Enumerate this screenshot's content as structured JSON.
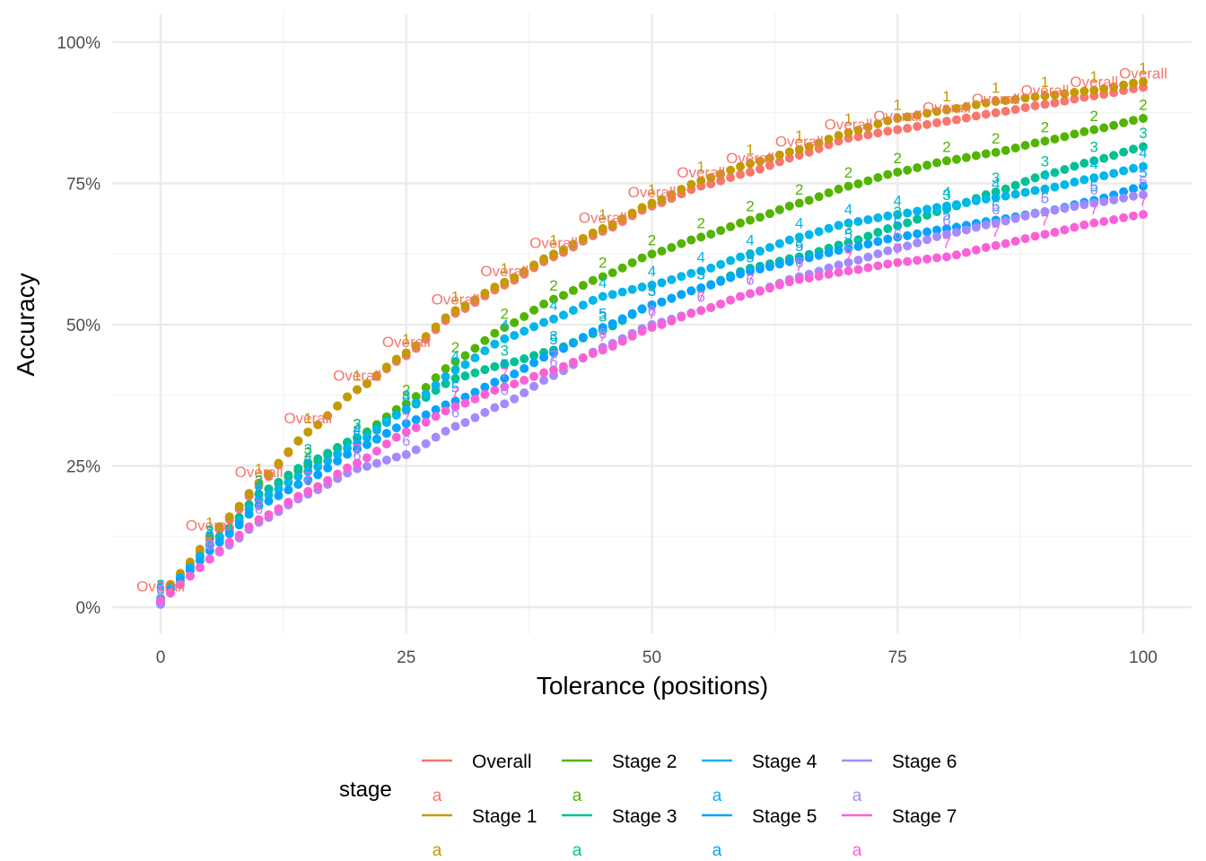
{
  "chart_data": {
    "type": "scatter",
    "title": "",
    "xlabel": "Tolerance (positions)",
    "ylabel": "Accuracy",
    "xlim": [
      0,
      100
    ],
    "ylim": [
      0,
      1
    ],
    "x_ticks": [
      0,
      25,
      50,
      75,
      100
    ],
    "x_tick_labels": [
      "0",
      "25",
      "50",
      "75",
      "100"
    ],
    "y_ticks": [
      0,
      0.25,
      0.5,
      0.75,
      1.0
    ],
    "y_tick_labels": [
      "0%",
      "25%",
      "50%",
      "75%",
      "100%"
    ],
    "grid": true,
    "legend_title": "stage",
    "legend_position": "bottom",
    "legend_key_glyph": "a",
    "label_every": 5,
    "series": [
      {
        "name": "Overall",
        "label": "Overall",
        "color": "#F8766D",
        "anchors": [
          [
            0,
            0.012
          ],
          [
            1,
            0.04
          ],
          [
            3,
            0.075
          ],
          [
            5,
            0.12
          ],
          [
            7,
            0.155
          ],
          [
            10,
            0.215
          ],
          [
            15,
            0.31
          ],
          [
            20,
            0.385
          ],
          [
            25,
            0.445
          ],
          [
            30,
            0.52
          ],
          [
            35,
            0.57
          ],
          [
            40,
            0.62
          ],
          [
            45,
            0.665
          ],
          [
            50,
            0.71
          ],
          [
            55,
            0.745
          ],
          [
            60,
            0.77
          ],
          [
            65,
            0.8
          ],
          [
            70,
            0.83
          ],
          [
            75,
            0.845
          ],
          [
            80,
            0.86
          ],
          [
            85,
            0.875
          ],
          [
            90,
            0.89
          ],
          [
            95,
            0.905
          ],
          [
            100,
            0.92
          ]
        ]
      },
      {
        "name": "Stage 1",
        "label": "1",
        "color": "#C49A00",
        "anchors": [
          [
            0,
            0.012
          ],
          [
            1,
            0.04
          ],
          [
            3,
            0.08
          ],
          [
            5,
            0.125
          ],
          [
            7,
            0.16
          ],
          [
            10,
            0.22
          ],
          [
            15,
            0.31
          ],
          [
            20,
            0.385
          ],
          [
            25,
            0.45
          ],
          [
            30,
            0.525
          ],
          [
            35,
            0.575
          ],
          [
            40,
            0.625
          ],
          [
            45,
            0.67
          ],
          [
            50,
            0.715
          ],
          [
            55,
            0.755
          ],
          [
            60,
            0.785
          ],
          [
            65,
            0.81
          ],
          [
            70,
            0.84
          ],
          [
            75,
            0.865
          ],
          [
            80,
            0.88
          ],
          [
            85,
            0.895
          ],
          [
            90,
            0.905
          ],
          [
            95,
            0.915
          ],
          [
            100,
            0.93
          ]
        ]
      },
      {
        "name": "Stage 2",
        "label": "2",
        "color": "#53B400",
        "anchors": [
          [
            0,
            0.015
          ],
          [
            1,
            0.035
          ],
          [
            3,
            0.07
          ],
          [
            5,
            0.11
          ],
          [
            7,
            0.14
          ],
          [
            10,
            0.2
          ],
          [
            15,
            0.25
          ],
          [
            20,
            0.3
          ],
          [
            25,
            0.36
          ],
          [
            30,
            0.435
          ],
          [
            35,
            0.495
          ],
          [
            40,
            0.545
          ],
          [
            45,
            0.585
          ],
          [
            50,
            0.625
          ],
          [
            55,
            0.655
          ],
          [
            60,
            0.685
          ],
          [
            65,
            0.715
          ],
          [
            70,
            0.745
          ],
          [
            75,
            0.77
          ],
          [
            80,
            0.79
          ],
          [
            85,
            0.805
          ],
          [
            90,
            0.825
          ],
          [
            95,
            0.845
          ],
          [
            100,
            0.865
          ]
        ]
      },
      {
        "name": "Stage 3",
        "label": "3",
        "color": "#00C094",
        "anchors": [
          [
            0,
            0.015
          ],
          [
            1,
            0.035
          ],
          [
            3,
            0.07
          ],
          [
            5,
            0.11
          ],
          [
            7,
            0.14
          ],
          [
            10,
            0.2
          ],
          [
            15,
            0.255
          ],
          [
            20,
            0.3
          ],
          [
            25,
            0.35
          ],
          [
            30,
            0.405
          ],
          [
            35,
            0.43
          ],
          [
            40,
            0.455
          ],
          [
            45,
            0.49
          ],
          [
            50,
            0.535
          ],
          [
            55,
            0.565
          ],
          [
            60,
            0.6
          ],
          [
            65,
            0.62
          ],
          [
            70,
            0.645
          ],
          [
            75,
            0.675
          ],
          [
            80,
            0.705
          ],
          [
            85,
            0.735
          ],
          [
            90,
            0.765
          ],
          [
            95,
            0.79
          ],
          [
            100,
            0.815
          ]
        ]
      },
      {
        "name": "Stage 4",
        "label": "4",
        "color": "#00B6EB",
        "anchors": [
          [
            0,
            0.015
          ],
          [
            1,
            0.035
          ],
          [
            3,
            0.07
          ],
          [
            5,
            0.11
          ],
          [
            7,
            0.135
          ],
          [
            10,
            0.19
          ],
          [
            15,
            0.24
          ],
          [
            20,
            0.29
          ],
          [
            25,
            0.35
          ],
          [
            30,
            0.42
          ],
          [
            35,
            0.475
          ],
          [
            40,
            0.51
          ],
          [
            45,
            0.55
          ],
          [
            50,
            0.57
          ],
          [
            55,
            0.595
          ],
          [
            60,
            0.625
          ],
          [
            65,
            0.655
          ],
          [
            70,
            0.68
          ],
          [
            75,
            0.695
          ],
          [
            80,
            0.71
          ],
          [
            85,
            0.725
          ],
          [
            90,
            0.74
          ],
          [
            95,
            0.76
          ],
          [
            100,
            0.78
          ]
        ]
      },
      {
        "name": "Stage 5",
        "label": "5",
        "color": "#06A4FF",
        "anchors": [
          [
            0,
            0.008
          ],
          [
            1,
            0.03
          ],
          [
            3,
            0.065
          ],
          [
            5,
            0.1
          ],
          [
            7,
            0.13
          ],
          [
            10,
            0.18
          ],
          [
            15,
            0.225
          ],
          [
            20,
            0.28
          ],
          [
            25,
            0.325
          ],
          [
            30,
            0.365
          ],
          [
            35,
            0.405
          ],
          [
            40,
            0.45
          ],
          [
            45,
            0.495
          ],
          [
            50,
            0.535
          ],
          [
            55,
            0.565
          ],
          [
            60,
            0.595
          ],
          [
            65,
            0.615
          ],
          [
            70,
            0.635
          ],
          [
            75,
            0.655
          ],
          [
            80,
            0.67
          ],
          [
            85,
            0.685
          ],
          [
            90,
            0.7
          ],
          [
            95,
            0.72
          ],
          [
            100,
            0.745
          ]
        ]
      },
      {
        "name": "Stage 6",
        "label": "6",
        "color": "#A58AFF",
        "anchors": [
          [
            0,
            0.005
          ],
          [
            1,
            0.025
          ],
          [
            3,
            0.055
          ],
          [
            5,
            0.085
          ],
          [
            7,
            0.11
          ],
          [
            10,
            0.15
          ],
          [
            15,
            0.2
          ],
          [
            20,
            0.245
          ],
          [
            25,
            0.27
          ],
          [
            30,
            0.32
          ],
          [
            35,
            0.36
          ],
          [
            40,
            0.41
          ],
          [
            45,
            0.46
          ],
          [
            50,
            0.5
          ],
          [
            55,
            0.525
          ],
          [
            60,
            0.555
          ],
          [
            65,
            0.585
          ],
          [
            70,
            0.61
          ],
          [
            75,
            0.635
          ],
          [
            80,
            0.66
          ],
          [
            85,
            0.68
          ],
          [
            90,
            0.7
          ],
          [
            95,
            0.715
          ],
          [
            100,
            0.73
          ]
        ]
      },
      {
        "name": "Stage 7",
        "label": "7",
        "color": "#FB61D7",
        "anchors": [
          [
            0,
            0.012
          ],
          [
            1,
            0.025
          ],
          [
            3,
            0.055
          ],
          [
            5,
            0.085
          ],
          [
            7,
            0.115
          ],
          [
            10,
            0.155
          ],
          [
            15,
            0.205
          ],
          [
            20,
            0.255
          ],
          [
            25,
            0.31
          ],
          [
            30,
            0.355
          ],
          [
            35,
            0.39
          ],
          [
            40,
            0.42
          ],
          [
            45,
            0.455
          ],
          [
            50,
            0.495
          ],
          [
            55,
            0.525
          ],
          [
            60,
            0.555
          ],
          [
            65,
            0.58
          ],
          [
            70,
            0.595
          ],
          [
            75,
            0.61
          ],
          [
            80,
            0.62
          ],
          [
            85,
            0.64
          ],
          [
            90,
            0.66
          ],
          [
            95,
            0.68
          ],
          [
            100,
            0.695
          ]
        ]
      }
    ]
  }
}
